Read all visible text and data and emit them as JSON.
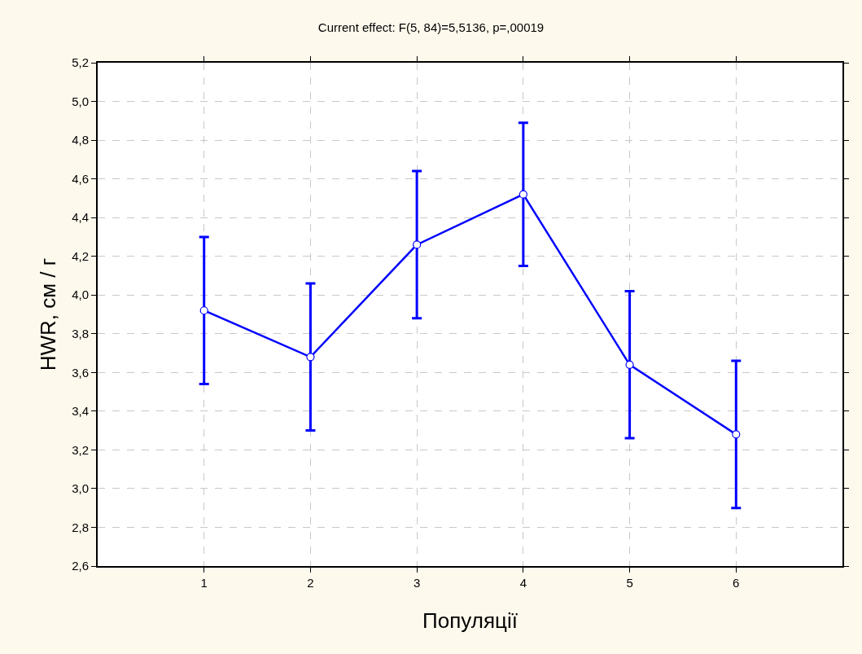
{
  "chart_data": {
    "type": "line",
    "title": "Current effect: F(5, 84)=5,5136, p=,00019",
    "xlabel": "Популяції",
    "ylabel": "HWR, см / г",
    "x": [
      1,
      2,
      3,
      4,
      5,
      6
    ],
    "series": [
      {
        "color": "#0000ff",
        "values": [
          3.92,
          3.68,
          4.26,
          4.52,
          3.64,
          3.28
        ],
        "errors": [
          0.38,
          0.38,
          0.38,
          0.37,
          0.38,
          0.38
        ]
      }
    ],
    "xlim": [
      0,
      7
    ],
    "xticks": [
      1,
      2,
      3,
      4,
      5,
      6
    ],
    "ylim": [
      2.6,
      5.2
    ],
    "yticks": [
      {
        "value": 2.6,
        "label": "2,6"
      },
      {
        "value": 2.8,
        "label": "2,8"
      },
      {
        "value": 3.0,
        "label": "3,0"
      },
      {
        "value": 3.2,
        "label": "3,2"
      },
      {
        "value": 3.4,
        "label": "3,4"
      },
      {
        "value": 3.6,
        "label": "3,6"
      },
      {
        "value": 3.8,
        "label": "3,8"
      },
      {
        "value": 4.0,
        "label": "4,0"
      },
      {
        "value": 4.2,
        "label": "4,2"
      },
      {
        "value": 4.4,
        "label": "4,4"
      },
      {
        "value": 4.6,
        "label": "4,6"
      },
      {
        "value": 4.8,
        "label": "4,8"
      },
      {
        "value": 5.0,
        "label": "5,0"
      },
      {
        "value": 5.2,
        "label": "5,2"
      }
    ],
    "grid": true,
    "marker": "circle",
    "line_style": "solid"
  }
}
